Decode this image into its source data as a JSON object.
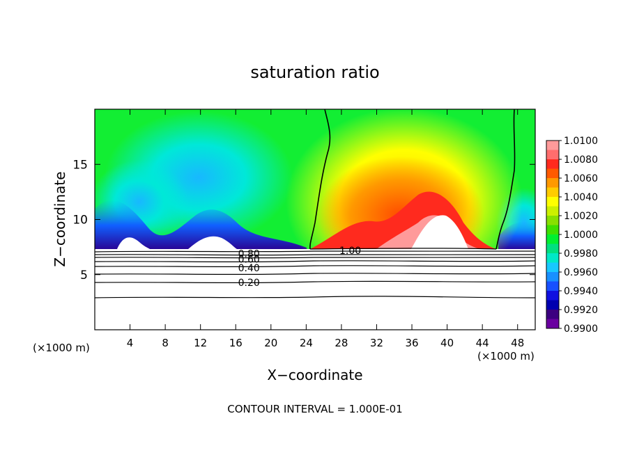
{
  "chart_data": {
    "type": "contour",
    "title": "saturation ratio",
    "xlabel": "X−coordinate",
    "ylabel": "Z−coordinate",
    "x_unit_left": "(×1000 m)",
    "x_unit_right": "(×1000 m)",
    "xlim": [
      0,
      50
    ],
    "ylim": [
      0,
      20
    ],
    "x_ticks": [
      4,
      8,
      12,
      16,
      20,
      24,
      28,
      32,
      36,
      40,
      44,
      48
    ],
    "y_ticks": [
      5,
      10,
      15
    ],
    "colorbar": {
      "levels": [
        "1.0100",
        "1.0080",
        "1.0060",
        "1.0040",
        "1.0020",
        "1.0000",
        "0.9980",
        "0.9960",
        "0.9940",
        "0.9920",
        "0.9900"
      ],
      "colors": [
        "#ff9a9a",
        "#ff6d6d",
        "#ff2a1e",
        "#ff5a00",
        "#ff9900",
        "#ffcc00",
        "#ffff00",
        "#ccf000",
        "#88e000",
        "#3ee000",
        "#00f030",
        "#00e080",
        "#00e8c8",
        "#18c8ff",
        "#1890ff",
        "#1850ff",
        "#1010e0",
        "#0000b0",
        "#3c0080",
        "#6a00a0"
      ]
    },
    "contour_labels": [
      {
        "text": "1.00",
        "x": 29.0,
        "z": 7.2
      },
      {
        "text": "0.80",
        "x": 17.5,
        "z": 6.9
      },
      {
        "text": "0.60",
        "x": 17.5,
        "z": 6.4
      },
      {
        "text": "0.40",
        "x": 17.5,
        "z": 5.6
      },
      {
        "text": "0.20",
        "x": 17.5,
        "z": 4.3
      }
    ],
    "footer": "CONTOUR INTERVAL = 1.000E-01"
  }
}
